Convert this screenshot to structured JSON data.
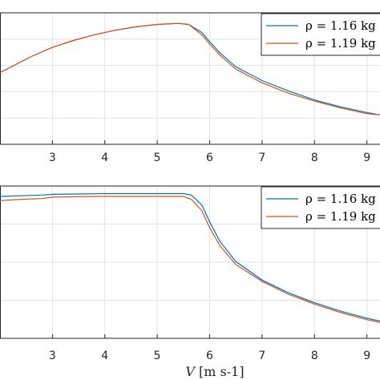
{
  "chart_data": [
    {
      "type": "line",
      "xlim": [
        2,
        9.25
      ],
      "ylim": [
        0,
        1
      ],
      "xticks": [
        3,
        4,
        5,
        6,
        7,
        8,
        9
      ],
      "grid": true,
      "legend_position": "top-right",
      "series": [
        {
          "name": "ρ = 1.16 kg",
          "color": "#0072BD",
          "x": [
            2,
            2.3,
            2.6,
            3,
            3.4,
            3.8,
            4.2,
            4.6,
            5.0,
            5.4,
            5.6,
            5.85,
            6.0,
            6.2,
            6.5,
            7.0,
            7.5,
            8.0,
            8.5,
            9.0,
            9.25
          ],
          "y": [
            0.57,
            0.64,
            0.71,
            0.79,
            0.85,
            0.9,
            0.94,
            0.97,
            0.99,
            1.0,
            0.99,
            0.92,
            0.84,
            0.74,
            0.62,
            0.5,
            0.41,
            0.33,
            0.27,
            0.22,
            0.2
          ]
        },
        {
          "name": "ρ = 1.19 kg",
          "color": "#D95319",
          "x": [
            2,
            2.3,
            2.6,
            3,
            3.4,
            3.8,
            4.2,
            4.6,
            5.0,
            5.4,
            5.6,
            5.85,
            6.0,
            6.2,
            6.5,
            7.0,
            7.5,
            8.0,
            8.5,
            9.0,
            9.25
          ],
          "y": [
            0.57,
            0.64,
            0.71,
            0.79,
            0.85,
            0.9,
            0.94,
            0.97,
            0.99,
            1.0,
            0.99,
            0.9,
            0.82,
            0.72,
            0.6,
            0.48,
            0.39,
            0.32,
            0.26,
            0.21,
            0.2
          ]
        }
      ]
    },
    {
      "type": "line",
      "xlim": [
        2,
        9.25
      ],
      "ylim": [
        0,
        1
      ],
      "xticks": [
        3,
        4,
        5,
        6,
        7,
        8,
        9
      ],
      "xlabel_var": "V",
      "xlabel_unit": "[m s-1]",
      "grid": true,
      "legend_position": "top-right",
      "series": [
        {
          "name": "ρ = 1.16 kg",
          "color": "#0072BD",
          "x": [
            2,
            2.4,
            2.8,
            3.0,
            3.5,
            4.0,
            4.5,
            5.0,
            5.5,
            5.65,
            5.85,
            6.0,
            6.2,
            6.5,
            7.0,
            7.5,
            8.0,
            8.5,
            9.0,
            9.25
          ],
          "y": [
            0.98,
            0.985,
            0.99,
            0.995,
            0.997,
            1.0,
            1.0,
            1.0,
            1.0,
            0.99,
            0.92,
            0.8,
            0.66,
            0.52,
            0.39,
            0.3,
            0.23,
            0.17,
            0.12,
            0.1
          ]
        },
        {
          "name": "ρ = 1.19 kg",
          "color": "#D95319",
          "x": [
            2,
            2.4,
            2.8,
            3.0,
            3.5,
            4.0,
            4.5,
            5.0,
            5.5,
            5.65,
            5.85,
            6.0,
            6.2,
            6.5,
            7.0,
            7.5,
            8.0,
            8.5,
            9.0,
            9.25
          ],
          "y": [
            0.95,
            0.96,
            0.965,
            0.975,
            0.978,
            0.98,
            0.98,
            0.98,
            0.98,
            0.96,
            0.88,
            0.76,
            0.63,
            0.5,
            0.38,
            0.29,
            0.22,
            0.16,
            0.11,
            0.09
          ]
        }
      ]
    }
  ]
}
